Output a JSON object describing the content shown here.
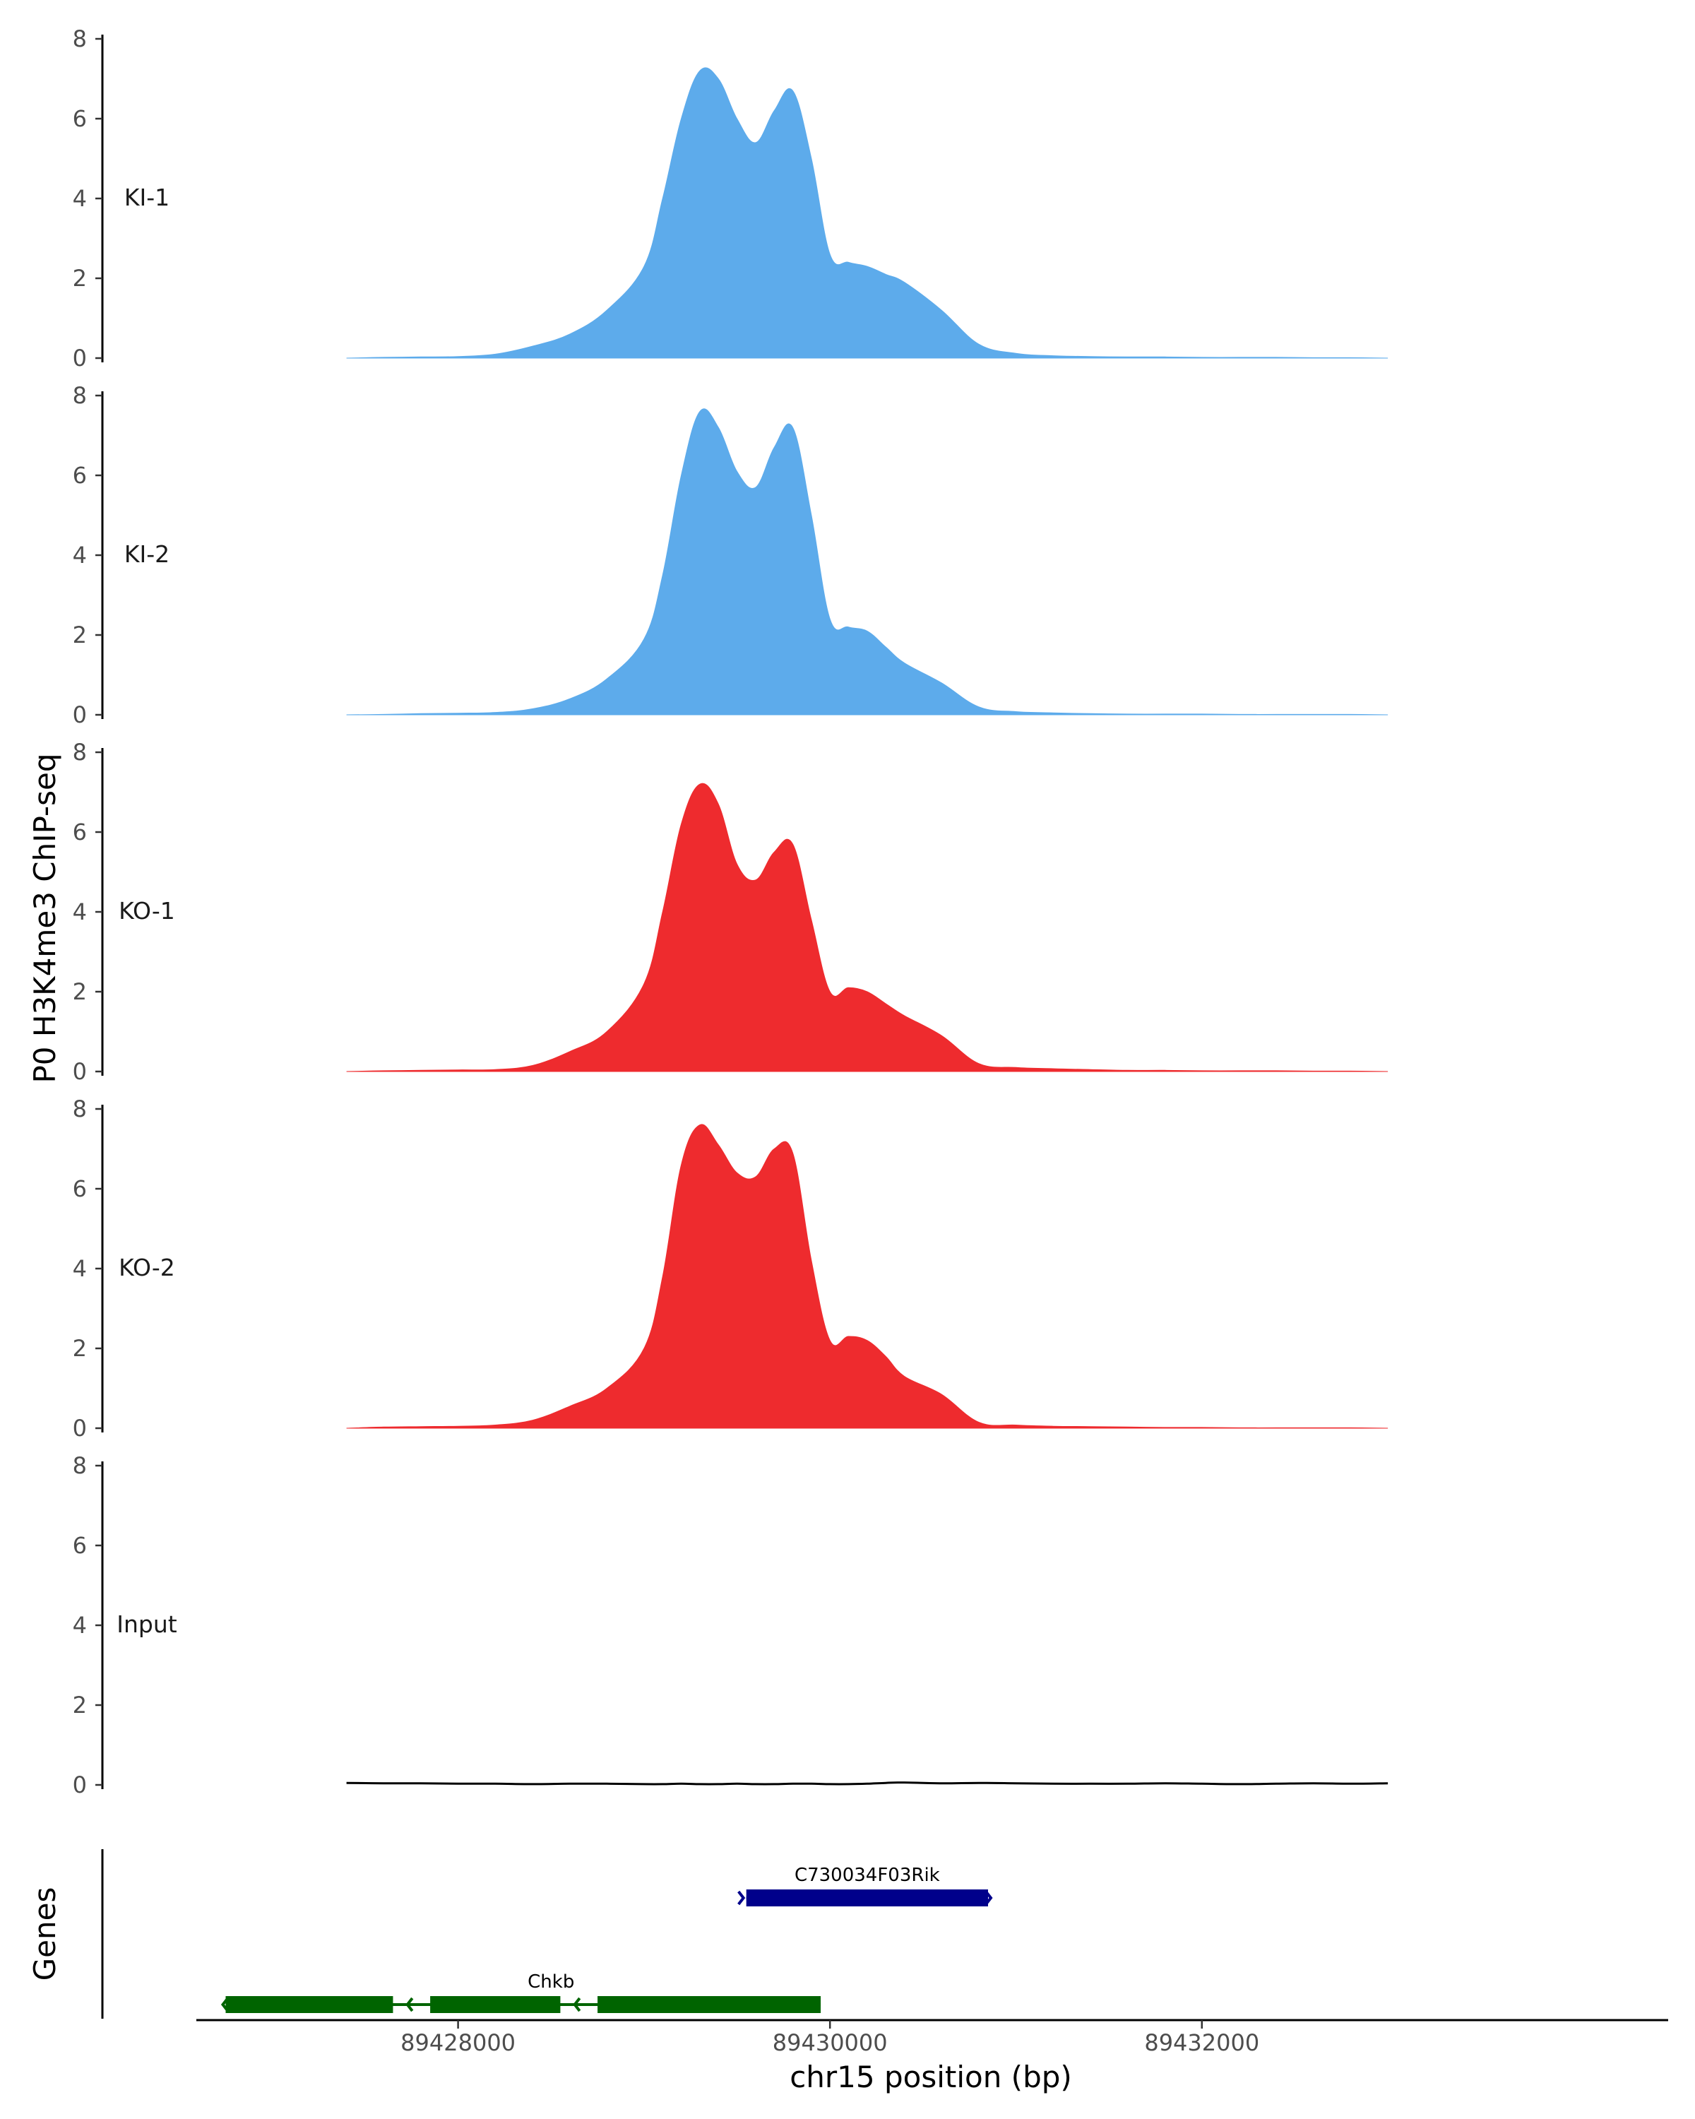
{
  "chart_data": {
    "type": "area",
    "title": "",
    "ylabel": "P0 H3K4me3 ChIP-seq",
    "xlabel": "chr15 position (bp)",
    "ylim": [
      0,
      8
    ],
    "yticks": [
      0,
      2,
      4,
      6,
      8
    ],
    "xlim": [
      89426600,
      89434500
    ],
    "xticks": [
      89428000,
      89430000,
      89432000
    ],
    "xtick_labels": [
      "89428000",
      "89430000",
      "89432000"
    ],
    "x": [
      89427400,
      89427600,
      89427800,
      89428000,
      89428200,
      89428400,
      89428600,
      89428800,
      89429000,
      89429100,
      89429200,
      89429300,
      89429400,
      89429500,
      89429600,
      89429700,
      89429800,
      89429900,
      89430000,
      89430100,
      89430200,
      89430300,
      89430400,
      89430600,
      89430800,
      89431000,
      89431200,
      89431400,
      89431600,
      89431800,
      89432000,
      89432200,
      89432400,
      89432600,
      89432800,
      89433000
    ],
    "tracks": [
      {
        "name": "KI-1",
        "color": "#5dabeb",
        "values": [
          0.0,
          0.02,
          0.03,
          0.04,
          0.1,
          0.3,
          0.6,
          1.2,
          2.3,
          4.0,
          6.0,
          7.2,
          7.0,
          6.0,
          5.4,
          6.2,
          6.7,
          5.0,
          2.6,
          2.4,
          2.3,
          2.1,
          1.9,
          1.2,
          0.35,
          0.12,
          0.06,
          0.04,
          0.03,
          0.03,
          0.02,
          0.02,
          0.02,
          0.01,
          0.01,
          0.0
        ]
      },
      {
        "name": "KI-2",
        "color": "#5dabeb",
        "values": [
          0.0,
          0.01,
          0.03,
          0.04,
          0.06,
          0.15,
          0.4,
          0.9,
          1.9,
          3.5,
          6.0,
          7.6,
          7.2,
          6.1,
          5.7,
          6.7,
          7.2,
          5.0,
          2.4,
          2.2,
          2.1,
          1.7,
          1.3,
          0.8,
          0.2,
          0.08,
          0.05,
          0.03,
          0.02,
          0.02,
          0.02,
          0.01,
          0.01,
          0.01,
          0.01,
          0.0
        ]
      },
      {
        "name": "KO-1",
        "color": "#ee2b2e",
        "values": [
          0.0,
          0.02,
          0.03,
          0.04,
          0.05,
          0.15,
          0.5,
          1.0,
          2.2,
          4.0,
          6.2,
          7.2,
          6.7,
          5.2,
          4.8,
          5.5,
          5.7,
          3.8,
          2.0,
          2.1,
          2.0,
          1.7,
          1.4,
          0.9,
          0.2,
          0.1,
          0.07,
          0.05,
          0.03,
          0.03,
          0.02,
          0.02,
          0.02,
          0.01,
          0.01,
          0.0
        ]
      },
      {
        "name": "KO-2",
        "color": "#ee2b2e",
        "values": [
          0.0,
          0.03,
          0.04,
          0.05,
          0.08,
          0.2,
          0.55,
          1.0,
          2.0,
          3.8,
          6.6,
          7.6,
          7.1,
          6.4,
          6.3,
          7.0,
          6.9,
          4.2,
          2.2,
          2.3,
          2.2,
          1.8,
          1.3,
          0.85,
          0.15,
          0.08,
          0.05,
          0.04,
          0.03,
          0.02,
          0.02,
          0.01,
          0.01,
          0.01,
          0.01,
          0.0
        ]
      },
      {
        "name": "Input",
        "color": "#000000",
        "values": [
          0.05,
          0.04,
          0.04,
          0.03,
          0.03,
          0.02,
          0.03,
          0.03,
          0.02,
          0.02,
          0.03,
          0.02,
          0.02,
          0.03,
          0.02,
          0.02,
          0.03,
          0.03,
          0.02,
          0.02,
          0.03,
          0.05,
          0.06,
          0.04,
          0.05,
          0.04,
          0.03,
          0.03,
          0.03,
          0.04,
          0.03,
          0.02,
          0.03,
          0.04,
          0.03,
          0.04
        ]
      }
    ],
    "genes_track": {
      "label": "Genes",
      "genes": [
        {
          "name": "C730034F03Rik",
          "start": 89429550,
          "end": 89430850,
          "strand": "+",
          "color": "#00008b",
          "exons": [
            [
              89429550,
              89430850
            ]
          ]
        },
        {
          "name": "Chkb",
          "start": 89426750,
          "end": 89429950,
          "strand": "-",
          "color": "#006400",
          "exons": [
            [
              89426750,
              89427650
            ],
            [
              89427850,
              89428550
            ],
            [
              89428750,
              89429950
            ]
          ]
        }
      ]
    }
  }
}
